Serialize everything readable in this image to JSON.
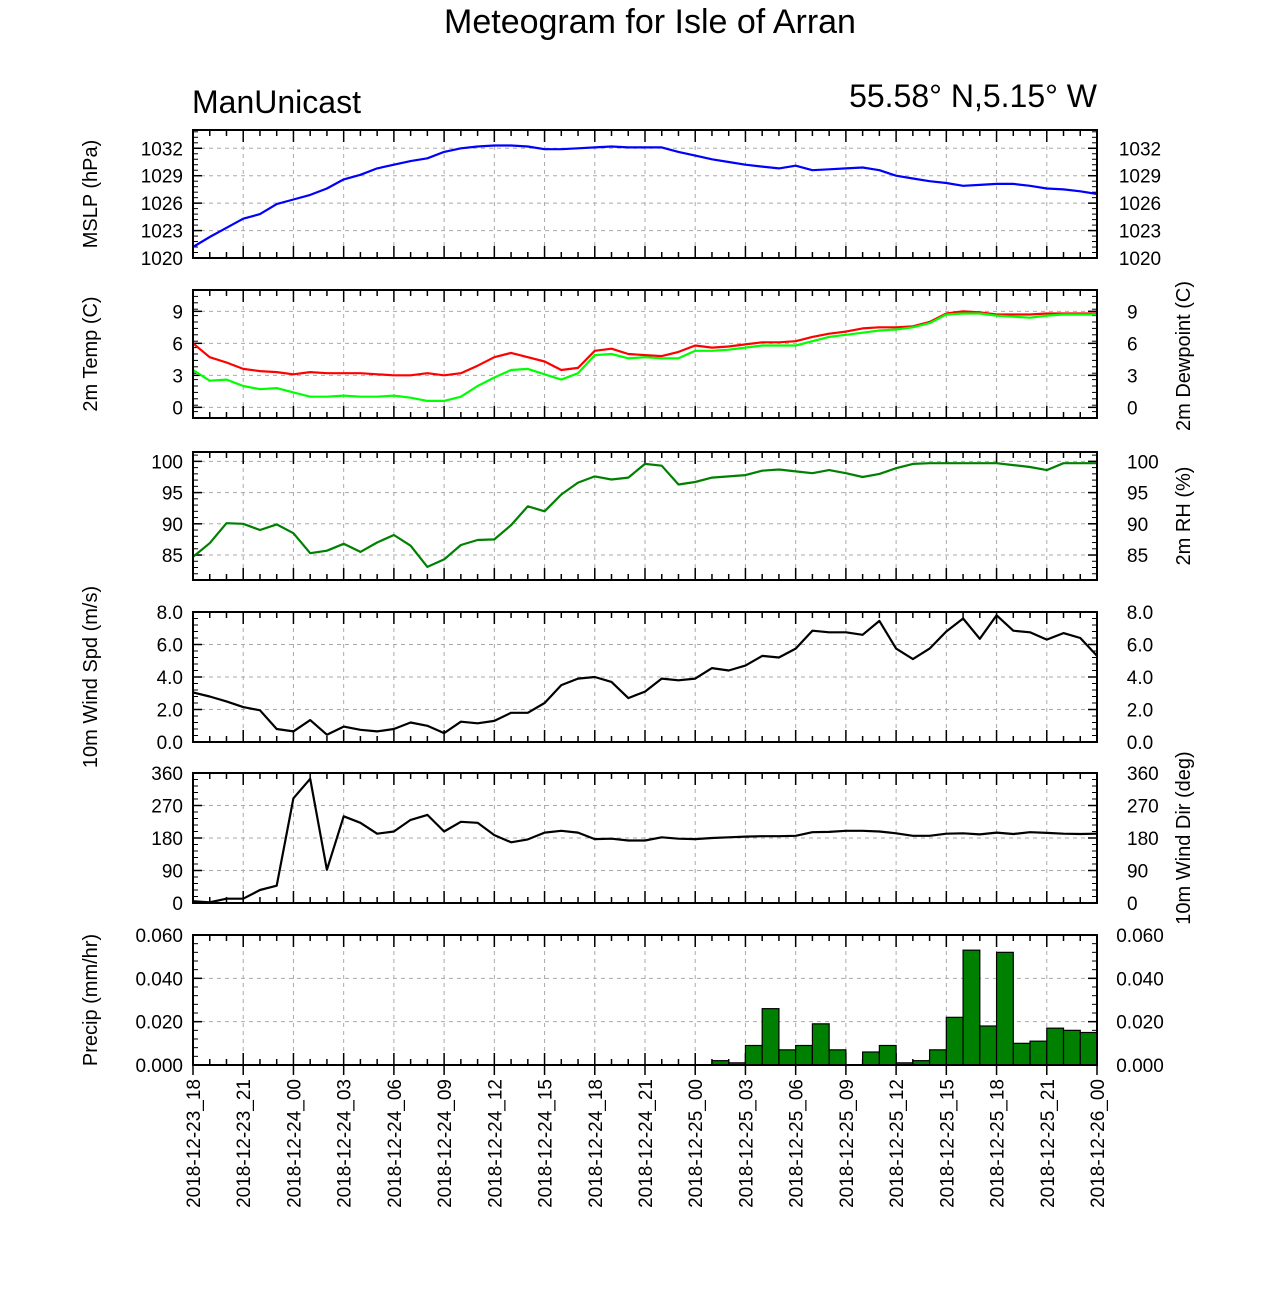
{
  "title": "Meteogram for Isle of Arran",
  "left_header": "ManUnicast",
  "right_header": "55.58° N,5.15° W",
  "x_tick_labels": [
    "2018-12-23_18",
    "2018-12-23_21",
    "2018-12-24_00",
    "2018-12-24_03",
    "2018-12-24_06",
    "2018-12-24_09",
    "2018-12-24_12",
    "2018-12-24_15",
    "2018-12-24_18",
    "2018-12-24_21",
    "2018-12-25_00",
    "2018-12-25_03",
    "2018-12-25_06",
    "2018-12-25_09",
    "2018-12-25_12",
    "2018-12-25_15",
    "2018-12-25_18",
    "2018-12-25_21",
    "2018-12-26_00"
  ],
  "colors": {
    "mslp": "#0000ff",
    "temp": "#ff0000",
    "dewpoint": "#00ff00",
    "rh": "#008000",
    "wind": "#000000",
    "precip": "#008000",
    "grid": "#aaaaaa"
  },
  "chart_data": [
    {
      "type": "line",
      "ylabel": "MSLP (hPa)",
      "ylim": [
        1020,
        1034
      ],
      "yticks": [
        "1020",
        "1023",
        "1026",
        "1029",
        "1032"
      ],
      "grid": true,
      "x": [
        "2018-12-23_18",
        "2018-12-23_19",
        "2018-12-23_20",
        "2018-12-23_21",
        "2018-12-23_22",
        "2018-12-23_23",
        "2018-12-24_00",
        "2018-12-24_01",
        "2018-12-24_02",
        "2018-12-24_03",
        "2018-12-24_04",
        "2018-12-24_05",
        "2018-12-24_06",
        "2018-12-24_07",
        "2018-12-24_08",
        "2018-12-24_09",
        "2018-12-24_10",
        "2018-12-24_11",
        "2018-12-24_12",
        "2018-12-24_13",
        "2018-12-24_14",
        "2018-12-24_15",
        "2018-12-24_16",
        "2018-12-24_17",
        "2018-12-24_18",
        "2018-12-24_19",
        "2018-12-24_20",
        "2018-12-24_21",
        "2018-12-24_22",
        "2018-12-24_23",
        "2018-12-25_00",
        "2018-12-25_01",
        "2018-12-25_02",
        "2018-12-25_03",
        "2018-12-25_04",
        "2018-12-25_05",
        "2018-12-25_06",
        "2018-12-25_07",
        "2018-12-25_08",
        "2018-12-25_09",
        "2018-12-25_10",
        "2018-12-25_11",
        "2018-12-25_12",
        "2018-12-25_13",
        "2018-12-25_14",
        "2018-12-25_15",
        "2018-12-25_16",
        "2018-12-25_17",
        "2018-12-25_18",
        "2018-12-25_19",
        "2018-12-25_20",
        "2018-12-25_21",
        "2018-12-25_22",
        "2018-12-25_23",
        "2018-12-26_00"
      ],
      "series": [
        {
          "color": "#0000ff",
          "values": [
            1021.2,
            1022.3,
            1023.3,
            1024.3,
            1024.8,
            1025.9,
            1026.4,
            1026.9,
            1027.6,
            1028.6,
            1029.1,
            1029.8,
            1030.2,
            1030.6,
            1030.9,
            1031.6,
            1032.0,
            1032.2,
            1032.3,
            1032.3,
            1032.2,
            1031.9,
            1031.9,
            1032.0,
            1032.1,
            1032.2,
            1032.1,
            1032.1,
            1032.1,
            1031.6,
            1031.2,
            1030.8,
            1030.5,
            1030.2,
            1030.0,
            1029.8,
            1030.1,
            1029.6,
            1029.7,
            1029.8,
            1029.9,
            1029.6,
            1029.0,
            1028.7,
            1028.4,
            1028.2,
            1027.9,
            1028.0,
            1028.1,
            1028.1,
            1027.9,
            1027.6,
            1027.5,
            1027.3,
            1027.0
          ]
        }
      ]
    },
    {
      "type": "line",
      "ylabel": "2m Temp (C)",
      "y2label": "2m Dewpoint (C)",
      "ylim": [
        -1,
        11
      ],
      "yticks": [
        "0",
        "3",
        "6",
        "9"
      ],
      "grid": true,
      "series": [
        {
          "color": "#ff0000",
          "values": [
            6.0,
            4.7,
            4.2,
            3.6,
            3.4,
            3.3,
            3.1,
            3.3,
            3.2,
            3.2,
            3.2,
            3.1,
            3.0,
            3.0,
            3.2,
            3.0,
            3.2,
            3.9,
            4.7,
            5.1,
            4.7,
            4.3,
            3.5,
            3.7,
            5.3,
            5.5,
            5.0,
            4.9,
            4.8,
            5.2,
            5.8,
            5.6,
            5.7,
            5.9,
            6.1,
            6.1,
            6.2,
            6.6,
            6.9,
            7.1,
            7.4,
            7.5,
            7.5,
            7.6,
            8.0,
            8.8,
            9.0,
            8.9,
            8.7,
            8.7,
            8.7,
            8.8,
            8.8,
            8.8,
            8.8
          ]
        },
        {
          "color": "#00ff00",
          "values": [
            3.5,
            2.5,
            2.6,
            2.0,
            1.7,
            1.8,
            1.4,
            1.0,
            1.0,
            1.1,
            1.0,
            1.0,
            1.1,
            0.9,
            0.6,
            0.6,
            1.0,
            2.0,
            2.8,
            3.5,
            3.6,
            3.1,
            2.6,
            3.2,
            4.9,
            5.0,
            4.6,
            4.7,
            4.6,
            4.6,
            5.3,
            5.3,
            5.4,
            5.6,
            5.8,
            5.8,
            5.8,
            6.2,
            6.6,
            6.8,
            7.0,
            7.2,
            7.3,
            7.5,
            7.9,
            8.7,
            8.8,
            8.8,
            8.6,
            8.5,
            8.4,
            8.6,
            8.7,
            8.7,
            8.7
          ]
        }
      ]
    },
    {
      "type": "line",
      "ylabel": "2m RH (%)",
      "ylim": [
        81,
        101.5
      ],
      "yticks": [
        "85",
        "90",
        "95",
        "100"
      ],
      "grid": true,
      "series": [
        {
          "color": "#008000",
          "values": [
            84.7,
            86.9,
            90.1,
            90.0,
            89.0,
            89.9,
            88.5,
            85.3,
            85.7,
            86.8,
            85.5,
            87.0,
            88.2,
            86.5,
            83.1,
            84.3,
            86.6,
            87.4,
            87.5,
            89.8,
            92.8,
            92.0,
            94.7,
            96.6,
            97.6,
            97.1,
            97.4,
            99.6,
            99.3,
            96.3,
            96.7,
            97.4,
            97.6,
            97.8,
            98.5,
            98.7,
            98.4,
            98.1,
            98.6,
            98.1,
            97.5,
            98.0,
            98.9,
            99.6,
            99.7,
            99.7,
            99.7,
            99.7,
            99.7,
            99.4,
            99.1,
            98.6,
            99.7,
            99.7,
            99.7
          ]
        }
      ]
    },
    {
      "type": "line",
      "ylabel": "10m Wind Spd (m/s)",
      "ylim": [
        0,
        8
      ],
      "yticks": [
        "0.0",
        "2.0",
        "4.0",
        "6.0",
        "8.0"
      ],
      "grid": true,
      "series": [
        {
          "color": "#000000",
          "values": [
            3.05,
            2.8,
            2.5,
            2.15,
            1.95,
            0.8,
            0.65,
            1.35,
            0.45,
            0.95,
            0.75,
            0.65,
            0.8,
            1.2,
            1.0,
            0.55,
            1.25,
            1.15,
            1.3,
            1.8,
            1.8,
            2.4,
            3.5,
            3.9,
            4.0,
            3.7,
            2.7,
            3.1,
            3.9,
            3.8,
            3.9,
            4.55,
            4.4,
            4.7,
            5.3,
            5.2,
            5.75,
            6.85,
            6.75,
            6.75,
            6.6,
            7.45,
            5.75,
            5.1,
            5.75,
            6.8,
            7.6,
            6.35,
            7.8,
            6.85,
            6.75,
            6.3,
            6.7,
            6.4,
            5.3
          ]
        }
      ]
    },
    {
      "type": "line",
      "ylabel": "10m Wind Dir (deg)",
      "ylim": [
        0,
        360
      ],
      "yticks": [
        "0",
        "90",
        "180",
        "270",
        "360"
      ],
      "grid": true,
      "series": [
        {
          "color": "#000000",
          "values": [
            5,
            2,
            12,
            12,
            36,
            48,
            290,
            344,
            92,
            240,
            222,
            192,
            198,
            230,
            244,
            198,
            225,
            222,
            188,
            168,
            176,
            195,
            200,
            195,
            177,
            178,
            173,
            173,
            182,
            178,
            177,
            180,
            182,
            184,
            185,
            185,
            186,
            196,
            197,
            200,
            200,
            198,
            193,
            186,
            186,
            192,
            193,
            190,
            195,
            191,
            196,
            194,
            192,
            191,
            192
          ]
        }
      ]
    },
    {
      "type": "bar",
      "ylabel": "Precip (mm/hr)",
      "ylim": [
        0,
        0.06
      ],
      "yticks": [
        "0.000",
        "0.020",
        "0.040",
        "0.060"
      ],
      "grid": true,
      "bar_color": "#008000",
      "values": [
        0,
        0,
        0,
        0,
        0,
        0,
        0,
        0,
        0,
        0,
        0,
        0,
        0,
        0,
        0,
        0,
        0,
        0,
        0,
        0,
        0,
        0,
        0,
        0,
        0,
        0,
        0,
        0,
        0,
        0,
        0,
        0.002,
        0.001,
        0.009,
        0.026,
        0.007,
        0.009,
        0.019,
        0.007,
        0,
        0.006,
        0.009,
        0.001,
        0.002,
        0.007,
        0.022,
        0.053,
        0.018,
        0.052,
        0.01,
        0.011,
        0.017,
        0.016,
        0.015
      ]
    }
  ]
}
